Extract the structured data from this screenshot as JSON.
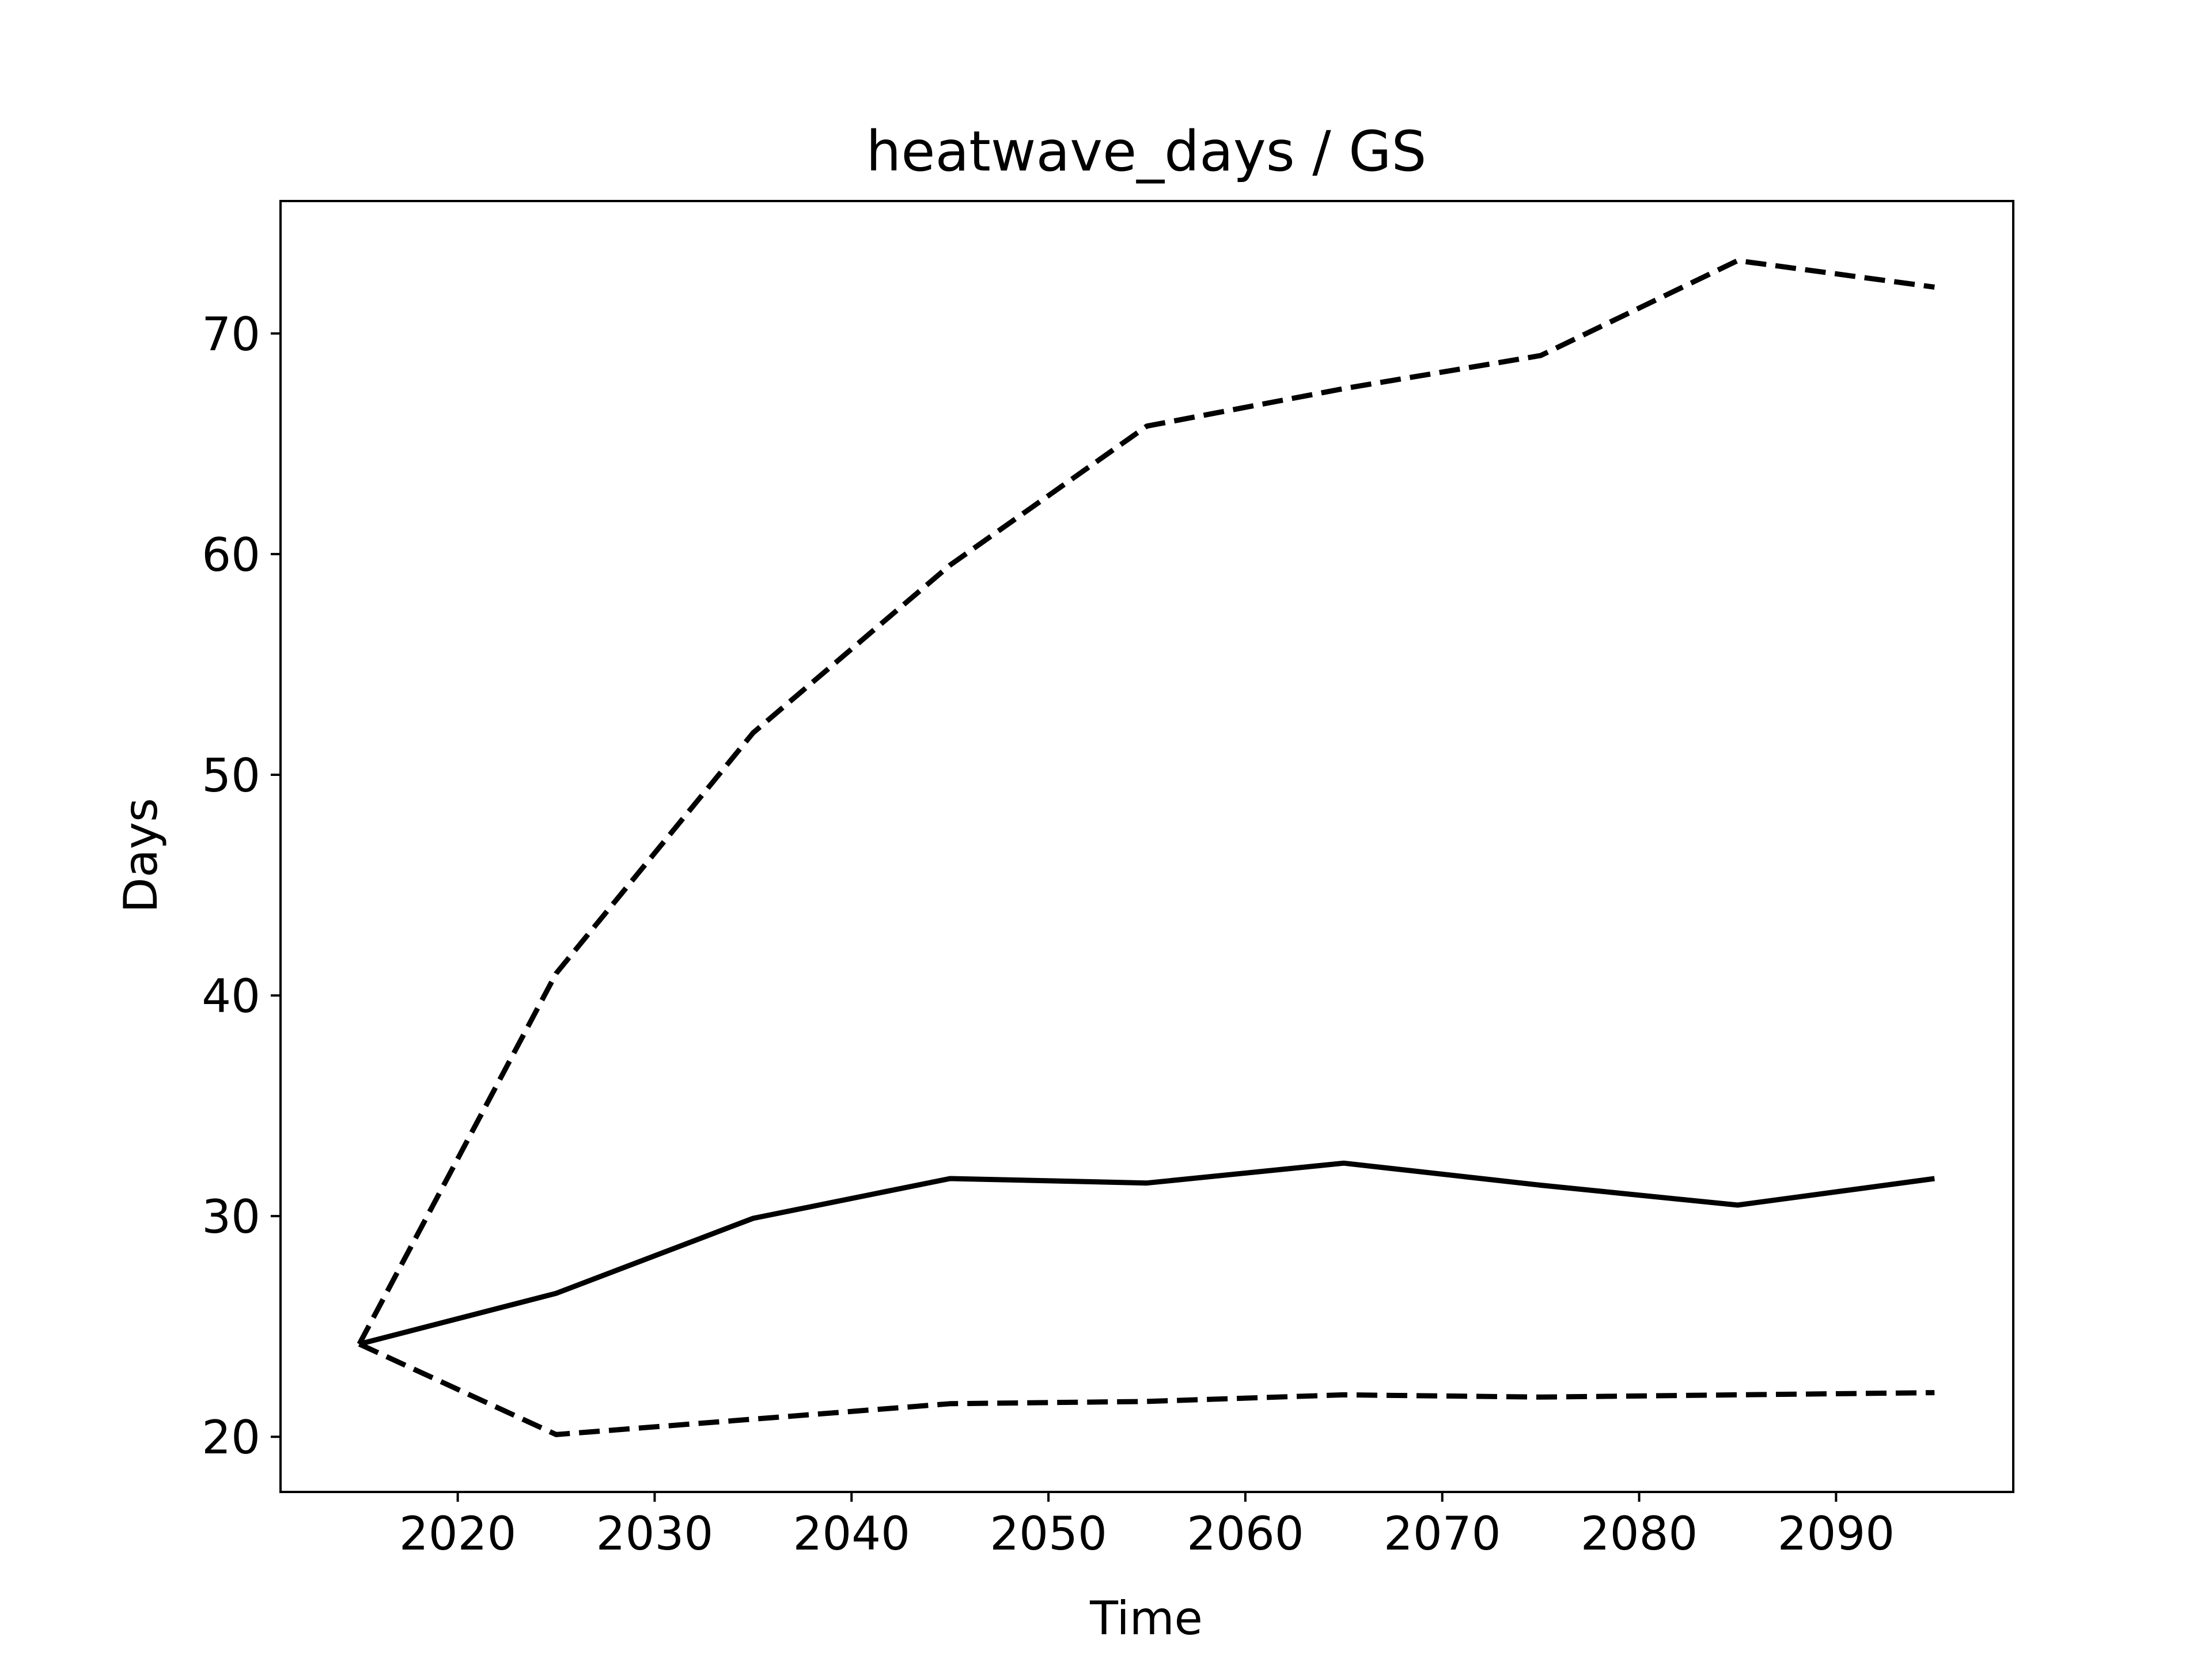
{
  "chart_data": {
    "type": "line",
    "title": "heatwave_days / GS",
    "xlabel": "Time",
    "ylabel": "Days",
    "xlim": [
      2011,
      2099
    ],
    "ylim": [
      17.5,
      76
    ],
    "xticks": [
      2020,
      2030,
      2040,
      2050,
      2060,
      2070,
      2080,
      2090
    ],
    "yticks": [
      20,
      30,
      40,
      50,
      60,
      70
    ],
    "grid": false,
    "legend": "none",
    "line_color": "#000000",
    "x": [
      2015,
      2025,
      2035,
      2045,
      2055,
      2065,
      2075,
      2085,
      2095
    ],
    "series": [
      {
        "style": "solid",
        "values": [
          24.2,
          26.5,
          29.9,
          31.7,
          31.5,
          32.4,
          31.4,
          30.5,
          31.7
        ]
      },
      {
        "style": "dashed",
        "values": [
          24.2,
          41.0,
          51.9,
          59.5,
          65.8,
          67.5,
          69.0,
          73.3,
          72.1
        ]
      },
      {
        "style": "dashed",
        "values": [
          24.2,
          20.1,
          20.8,
          21.5,
          21.6,
          21.9,
          21.8,
          21.9,
          22.0
        ]
      }
    ]
  }
}
